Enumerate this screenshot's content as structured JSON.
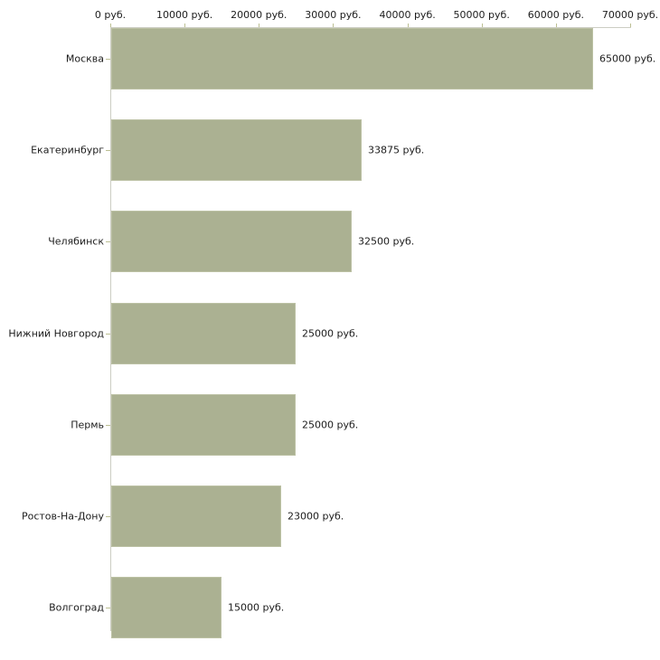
{
  "chart_data": {
    "type": "bar",
    "orientation": "horizontal",
    "title": "",
    "xlabel": "",
    "ylabel": "",
    "unit": "руб.",
    "xlim": [
      0,
      70000
    ],
    "grid": false,
    "legend": "none",
    "categories": [
      "Москва",
      "Екатеринбург",
      "Челябинск",
      "Нижний Новгород",
      "Пермь",
      "Ростов-На-Дону",
      "Волгоград"
    ],
    "values": [
      65000,
      33875,
      32500,
      25000,
      25000,
      23000,
      15000
    ],
    "value_labels": [
      "65000 руб.",
      "33875 руб.",
      "32500 руб.",
      "25000 руб.",
      "25000 руб.",
      "23000 руб.",
      "15000 руб."
    ],
    "x_ticks": {
      "values": [
        0,
        10000,
        20000,
        30000,
        40000,
        50000,
        60000,
        70000
      ],
      "labels": [
        "0 руб.",
        "10000 руб.",
        "20000 руб.",
        "30000 руб.",
        "40000 руб.",
        "50000 руб.",
        "60000 руб.",
        "70000 руб."
      ]
    },
    "colors": {
      "bar_fill": "#abb192",
      "bar_border": "#bcc1a4",
      "axis_line": "#cccdc3",
      "tick_mark": "#bcbf93",
      "text": "#1c1c1c",
      "background": "#ffffff"
    }
  }
}
